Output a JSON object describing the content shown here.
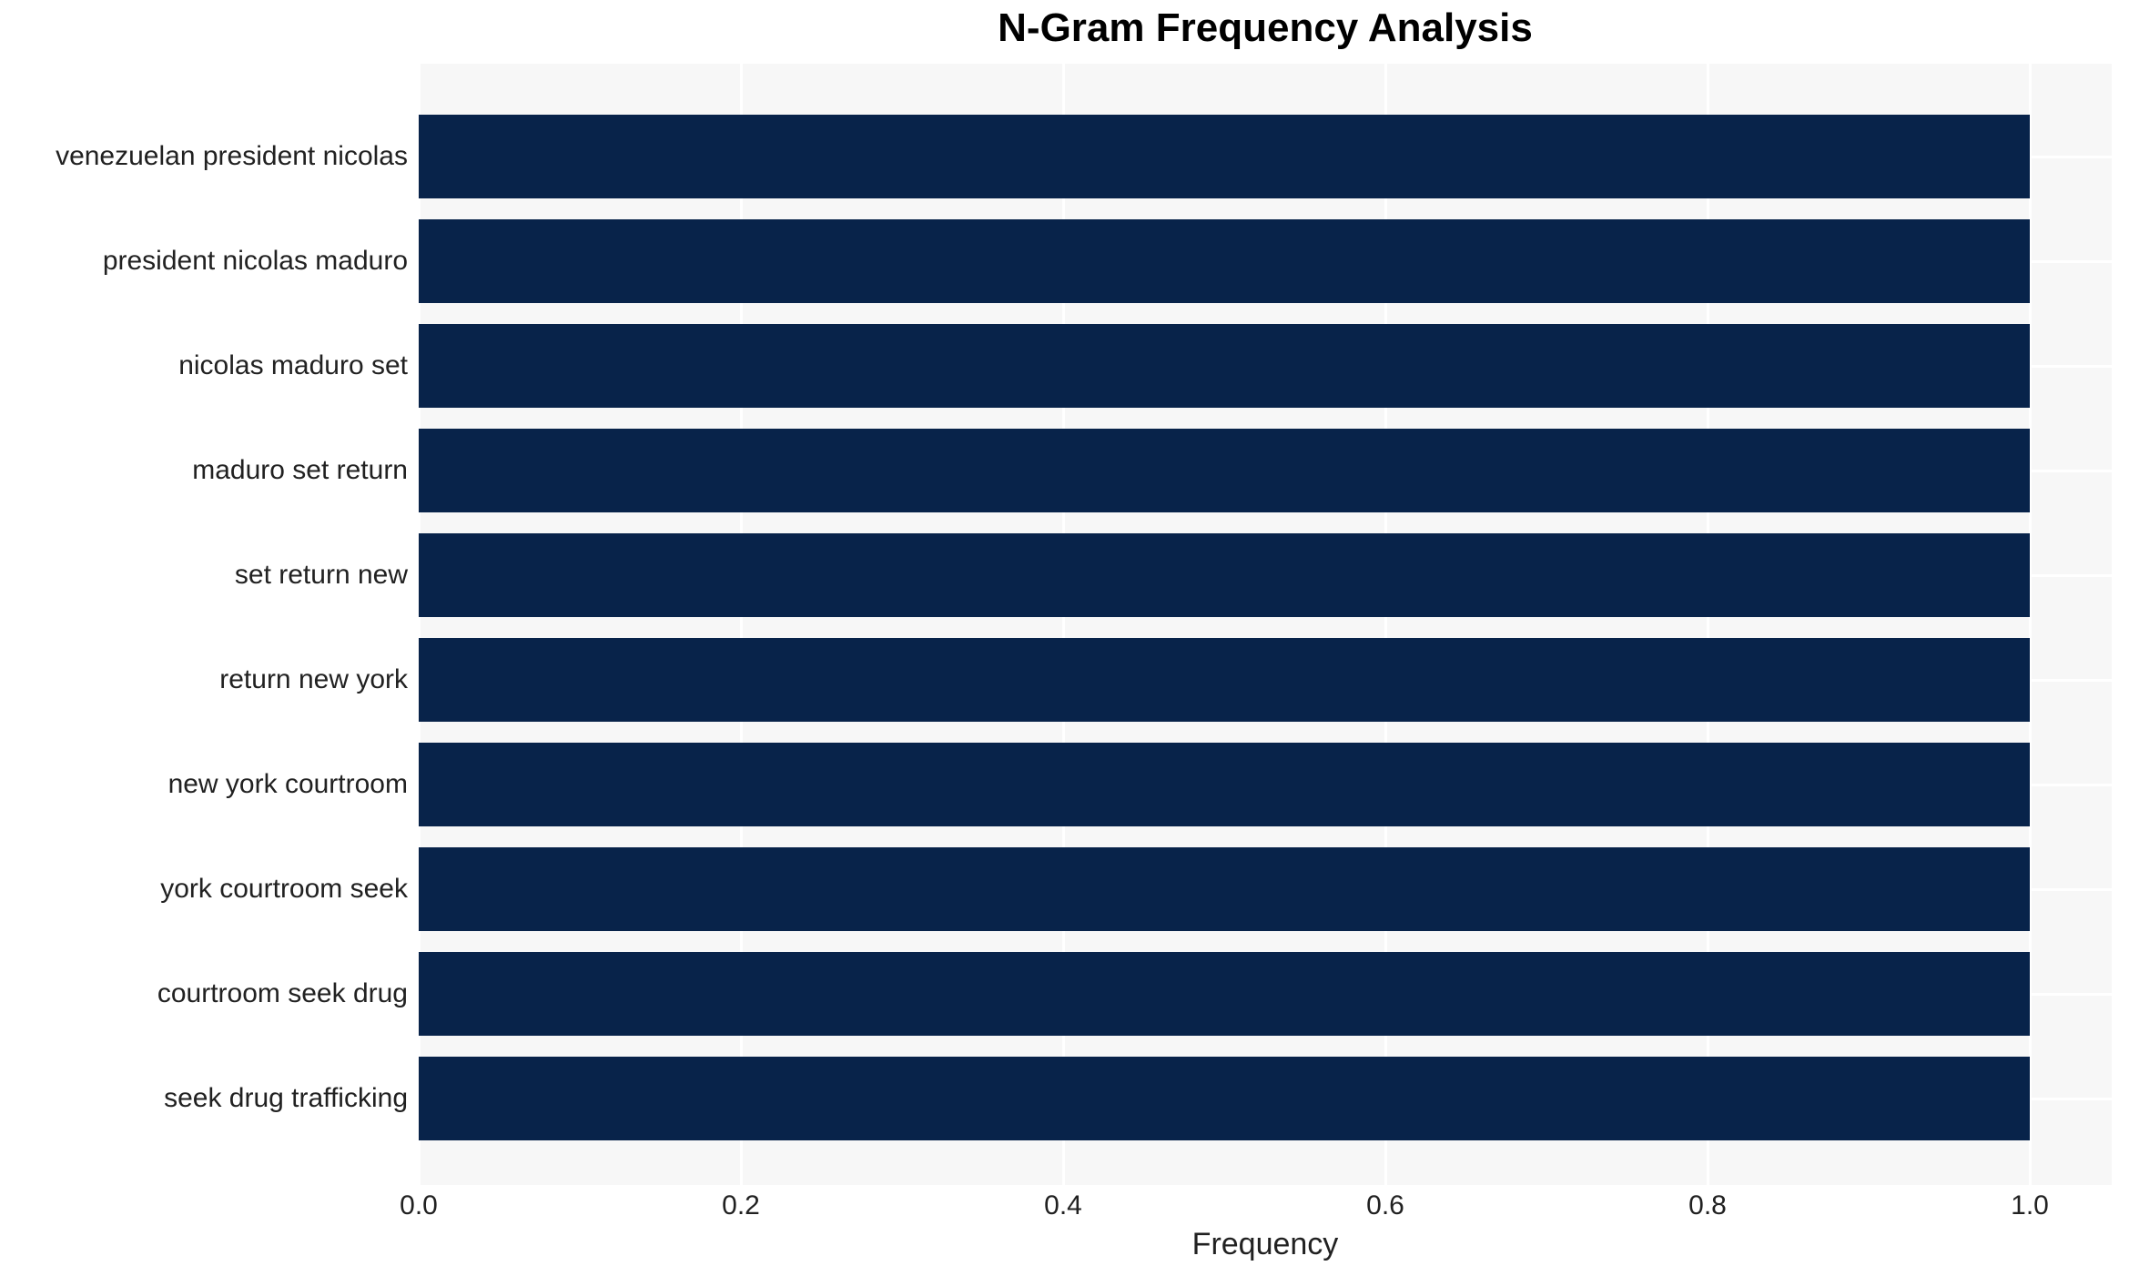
{
  "title": "N-Gram Frequency Analysis",
  "chart_data": {
    "type": "bar",
    "orientation": "horizontal",
    "title": "N-Gram Frequency Analysis",
    "xlabel": "Frequency",
    "ylabel": "",
    "categories": [
      "venezuelan president nicolas",
      "president nicolas maduro",
      "nicolas maduro set",
      "maduro set return",
      "set return new",
      "return new york",
      "new york courtroom",
      "york courtroom seek",
      "courtroom seek drug",
      "seek drug trafficking"
    ],
    "values": [
      1.0,
      1.0,
      1.0,
      1.0,
      1.0,
      1.0,
      1.0,
      1.0,
      1.0,
      1.0
    ],
    "xlim": [
      0.0,
      1.05
    ],
    "xticks": [
      0.0,
      0.2,
      0.4,
      0.6,
      0.8,
      1.0
    ],
    "xticklabels": [
      "0.0",
      "0.2",
      "0.4",
      "0.6",
      "0.8",
      "1.0"
    ],
    "grid": true,
    "legend": false,
    "colors": {
      "bar": "#08234a",
      "plot_background": "#f7f7f7",
      "gridline": "#ffffff",
      "text": "#212121",
      "title": "#000000"
    }
  }
}
